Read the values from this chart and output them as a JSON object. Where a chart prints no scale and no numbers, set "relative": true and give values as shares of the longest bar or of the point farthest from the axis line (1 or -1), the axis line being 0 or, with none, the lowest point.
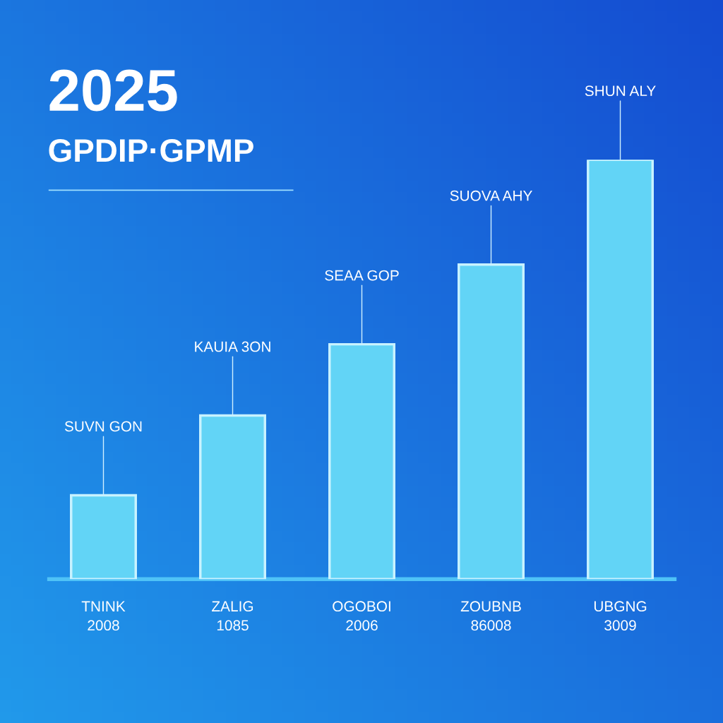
{
  "chart_data": {
    "type": "bar",
    "title": "2025",
    "subtitle": "GPDIP·GPMP",
    "categories": [
      "TNINK\n2008",
      "ZALIG\n1085",
      "OGOBOI\n2006",
      "ZOUBNB\n86008",
      "UBGNG\n3009"
    ],
    "values": [
      0.2,
      0.39,
      0.56,
      0.75,
      1.0
    ],
    "relative": true,
    "color": "#62d4f6",
    "annotations": [
      {
        "text": "SUVN GON",
        "x": "TNINK\n2008",
        "y": 0.2
      },
      {
        "text": "KAUIA 3ON",
        "x": "ZALIG\n1085",
        "y": 0.39
      },
      {
        "text": "SEAA GOP",
        "x": "OGOBOI\n2006",
        "y": 0.56
      },
      {
        "text": "SUOVA AHY",
        "x": "ZOUBNB\n86008",
        "y": 0.75
      },
      {
        "text": "SHUN ALY",
        "x": "UBGNG\n3009",
        "y": 1.0
      }
    ],
    "grid": false,
    "legend": false
  }
}
